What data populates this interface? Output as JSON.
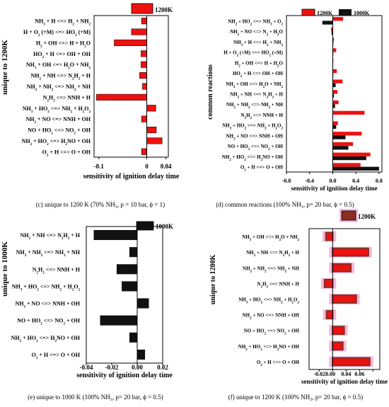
{
  "page": {
    "background": "#ffffff"
  },
  "colors": {
    "red": "#ee1111",
    "black": "#111111",
    "brown": "#8b2e22",
    "pink": "#f4b8de"
  },
  "chart_data": [
    {
      "id": "c",
      "type": "bar",
      "orientation": "horizontal",
      "caption": "(c) unique to 1200 K (70% NH₃, p = 10 bar, ϕ = 1)",
      "xlabel": "sensitivity of ignition delay time",
      "ylabel": "unique to 1200K",
      "xlim": [
        -0.11,
        0.045
      ],
      "ticks": [
        -0.1,
        0.0,
        0.04
      ],
      "tick_labels": [
        "-0.1",
        "0",
        "0.04"
      ],
      "legend": {
        "placement": "top-right",
        "entries": [
          "1200K"
        ]
      },
      "categories": [
        "NH3 + H <=> H2 + NH2",
        "H + O2 (+M) <=> HO2 (+M)",
        "H2 + OH <=> H + H2O",
        "HO2 + H <=> OH + OH",
        "NH3 + OH <=> H2O + NH2",
        "NH2 + NH <=> N2H2 + H",
        "NH2 + NH2 <=> NH2 + NH",
        "N2H2 <=> NNH + H",
        "NH3 + HO2 <=> NH2 + H2O2",
        "NH2 + NO <=> NNH + OH",
        "NO + HO2 <=> NO2 + OH",
        "NH2 + HO2 <=> H2NO + OH",
        "O2 + H <=> O + OH"
      ],
      "series": [
        {
          "name": "1200K",
          "color": "#ee1111",
          "values": [
            -0.011,
            -0.032,
            -0.068,
            -0.012,
            -0.012,
            -0.015,
            -0.009,
            -0.105,
            0.019,
            -0.011,
            0.02,
            0.032,
            -0.011
          ]
        }
      ]
    },
    {
      "id": "d",
      "type": "bar",
      "orientation": "horizontal",
      "caption": "(d) common reactions (100% NH₃, p= 20 bar, ϕ = 0.5)",
      "xlabel": "sensitivity of ignition delay time",
      "ylabel": "common reactions",
      "xlim": [
        -0.8,
        0.85
      ],
      "ticks": [
        -0.8,
        -0.4,
        0.0,
        0.4,
        0.8
      ],
      "tick_labels": [
        "-0.8",
        "-0.4",
        "0.0",
        "0.4",
        "0.8"
      ],
      "legend": {
        "placement": "top-right",
        "entries": [
          "1200K",
          "1000K"
        ]
      },
      "categories": [
        "NH2 + HO2 <=> NH3 + O2",
        "NH2 + NO <=> N2 + H2O",
        "NH3 + H <=> H2 + NH2",
        "H + O2 (+M) <=> HO2 (+M)",
        "H2 + OH <=> H + H2O",
        "HO2 + H <=> OH + OH",
        "NH3 + OH <=> H2O + NH2",
        "NH2 + NH <=> N2H2 + H",
        "NH2 + NH2 <=> NH2 + NH",
        "N2H2 <=> NNH + H",
        "NH3 + HO2 <=> NH2 + H2O2",
        "NH2 + NO <=> NNH + OH",
        "NO + HO2 <=> NO2 + OH",
        "NH2 + HO2 <=> H2NO + OH",
        "O2 + H <=> O + OH"
      ],
      "series": [
        {
          "name": "1200K",
          "color": "#ee1111",
          "values": [
            0.18,
            -0.03,
            0.02,
            0.06,
            0.01,
            0.07,
            0.17,
            0.08,
            0.1,
            0.55,
            0.09,
            0.5,
            0.35,
            0.65,
            0.48
          ]
        },
        {
          "name": "1000K",
          "color": "#111111",
          "values": [
            -0.18,
            -0.02,
            0.01,
            0.01,
            0.0,
            0.01,
            0.05,
            0.02,
            0.04,
            0.0,
            0.06,
            0.22,
            0.27,
            0.58,
            0.8
          ]
        }
      ]
    },
    {
      "id": "e",
      "type": "bar",
      "orientation": "horizontal",
      "caption": "(e) unique to 1000 K (100% NH₃, p= 20 bar, ϕ = 0.5)",
      "xlabel": "sensitivity of ignition delay time",
      "ylabel": "unique to 1000K",
      "xlim": [
        -0.04,
        0.02
      ],
      "ticks": [
        -0.04,
        -0.02,
        0.0,
        0.02
      ],
      "tick_labels": [
        "-0.04",
        "-0.02",
        "0.00",
        "0.02"
      ],
      "legend": {
        "placement": "top-right",
        "entries": [
          "1000K"
        ]
      },
      "categories": [
        "NH2 + NH <=> N2H2 + H",
        "NH2 + NH2 <=> NH2 + NH",
        "N2H2 <=> NNH + H",
        "NH3 + HO2 <=> NH2 + H2O2",
        "NH2 + NO <=> NNH + OH",
        "NO + HO2 <=> NO2 + OH",
        "NH2 + HO2 <=> H2NO + OH",
        "O2 + H <=> O + OH"
      ],
      "series": [
        {
          "name": "1000K",
          "color": "#111111",
          "values": [
            -0.034,
            -0.006,
            -0.016,
            -0.012,
            0.009,
            -0.029,
            -0.006,
            0.006
          ]
        }
      ]
    },
    {
      "id": "f",
      "type": "bar",
      "orientation": "horizontal",
      "caption": "(f) unique to 1200 K (100% NH₃, p= 20 bar, ϕ = 0.5)",
      "xlabel": "sensitivity of ignition delay time",
      "ylabel": "unique to 1200K",
      "xlim": [
        -0.035,
        0.07
      ],
      "ticks": [
        -0.02,
        0.0,
        0.02,
        0.04,
        0.06
      ],
      "tick_labels": [
        "-0.020.00",
        "0.02",
        "0.04",
        "0.06"
      ],
      "legend": {
        "placement": "top-right",
        "entries": [
          "1200K"
        ]
      },
      "categories": [
        "NH3 + OH <=> H2O + NH2",
        "NH2 + NH <=> N2H2 + H",
        "NH2 + NH2 <=> NH2 + NH",
        "N2H2 <=> NNH + H",
        "NH3 + HO2 <=> NH2 + H2O2",
        "NH2 + NO <=> NNH + OH",
        "NO + HO2 <=> NO2 + OH",
        "NH2 + HO2 <=> H2NO + OH",
        "O2 + H <=> O + OH"
      ],
      "series": [
        {
          "name": "1200K",
          "color": "#ee1111",
          "values": [
            -0.01,
            0.053,
            0.027,
            -0.012,
            0.035,
            -0.009,
            0.017,
            0.015,
            0.055
          ]
        },
        {
          "name": "",
          "color": "#8b2e22",
          "values": [
            -0.01,
            0.053,
            0.027,
            -0.012,
            0.035,
            -0.009,
            0.017,
            0.015,
            0.055
          ]
        }
      ]
    }
  ]
}
